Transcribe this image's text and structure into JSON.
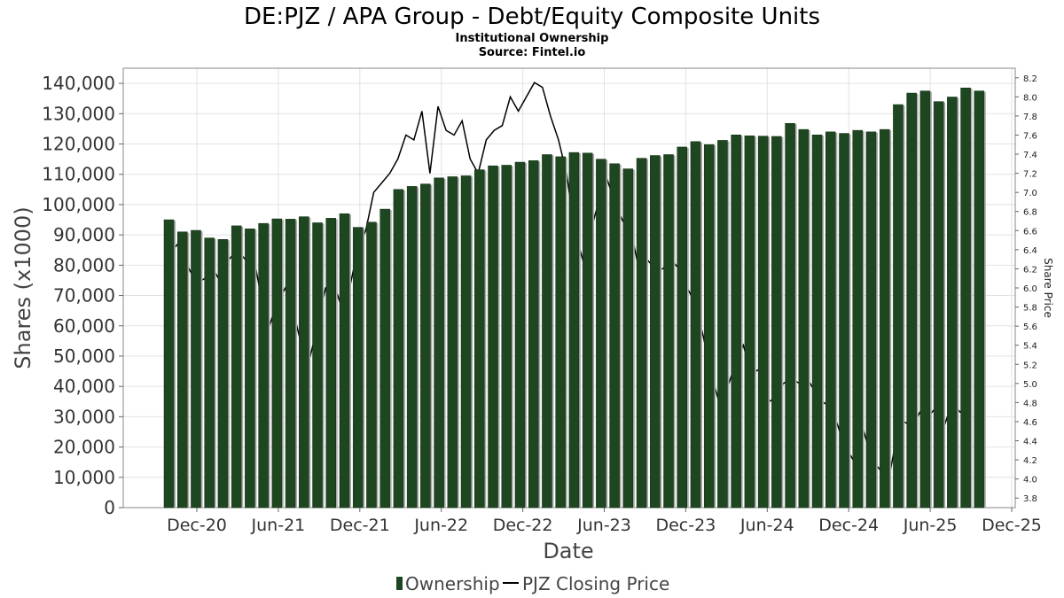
{
  "chart_data": {
    "type": "bar",
    "title": "DE:PJZ / APA Group - Debt/Equity Composite Units",
    "subtitle": "Institutional Ownership",
    "source": "Source: Fintel.io",
    "xlabel": "Date",
    "ylabel": "Shares (x1000)",
    "y2label": "Share Price",
    "ylim": [
      0,
      145000
    ],
    "y2lim": [
      3.7,
      8.3
    ],
    "yticks": [
      "0",
      "10,000",
      "20,000",
      "30,000",
      "40,000",
      "50,000",
      "60,000",
      "70,000",
      "80,000",
      "90,000",
      "100,000",
      "110,000",
      "120,000",
      "130,000",
      "140,000"
    ],
    "y2ticks": [
      "3.8",
      "4.0",
      "4.2",
      "4.4",
      "4.6",
      "4.8",
      "5.0",
      "5.2",
      "5.4",
      "5.6",
      "5.8",
      "6.0",
      "6.2",
      "6.4",
      "6.6",
      "6.8",
      "7.0",
      "7.2",
      "7.4",
      "7.6",
      "7.8",
      "8.0",
      "8.2"
    ],
    "xticks": [
      "Dec-20",
      "Jun-21",
      "Dec-21",
      "Jun-22",
      "Dec-22",
      "Jun-23",
      "Dec-23",
      "Jun-24",
      "Dec-24",
      "Jun-25",
      "Dec-25"
    ],
    "grid": true,
    "legend": {
      "placement": "bottom",
      "items": [
        {
          "label": "Ownership",
          "color": "#1e4620"
        },
        {
          "label": "PJZ Closing Price",
          "color": "#000000"
        }
      ]
    },
    "series": [
      {
        "name": "Ownership",
        "color": "#1e4620",
        "values": [
          95000,
          91000,
          91500,
          89000,
          88500,
          93000,
          92000,
          93800,
          95300,
          95200,
          96000,
          94000,
          95500,
          97000,
          92500,
          94200,
          98500,
          105000,
          106000,
          106800,
          108800,
          109200,
          109500,
          111500,
          112800,
          113000,
          114000,
          114500,
          116500,
          115800,
          117200,
          117000,
          115000,
          113500,
          111800,
          115300,
          116200,
          116500,
          119000,
          120800,
          119800,
          121200,
          123000,
          122700,
          122600,
          122500,
          126800,
          124800,
          123000,
          124000,
          123500,
          124500,
          124000,
          124800,
          133000,
          136800,
          137500,
          134000,
          135500,
          138500,
          137500
        ]
      },
      {
        "name": "PJZ Closing Price",
        "color": "#000000",
        "values": [
          6.4,
          6.5,
          6.2,
          6.05,
          6.1,
          6.2,
          6.05,
          6.3,
          6.4,
          6.3,
          6.35,
          5.9,
          5.6,
          5.85,
          6.0,
          5.75,
          5.4,
          5.25,
          5.6,
          6.0,
          6.05,
          5.8,
          6.0,
          6.4,
          6.6,
          7.0,
          7.1,
          7.2,
          7.35,
          7.6,
          7.55,
          7.85,
          7.2,
          7.9,
          7.65,
          7.6,
          7.75,
          7.35,
          7.2,
          7.55,
          7.65,
          7.7,
          8.0,
          7.85,
          8.0,
          8.15,
          8.1,
          7.8,
          7.55,
          7.2,
          6.6,
          6.3,
          6.6,
          6.9,
          7.15,
          6.9,
          6.7,
          6.6,
          6.2,
          6.3,
          6.2,
          6.2,
          6.3,
          6.2,
          6.0,
          5.85,
          5.5,
          5.1,
          4.8,
          4.95,
          5.2,
          5.4,
          5.1,
          5.15,
          4.8,
          4.85,
          5.0,
          5.05,
          5.0,
          5.05,
          4.9,
          4.8,
          4.75,
          4.5,
          4.3,
          4.15,
          4.5,
          4.2,
          4.1,
          3.95,
          4.4,
          4.6,
          4.55,
          4.7,
          4.65,
          4.75,
          4.55,
          4.8,
          4.7,
          4.75
        ]
      }
    ]
  }
}
